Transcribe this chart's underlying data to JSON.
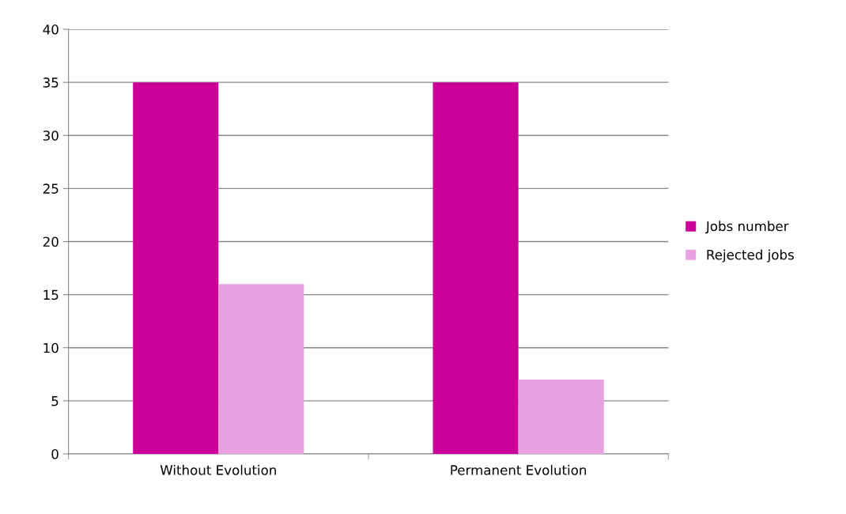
{
  "chart_data": {
    "type": "bar",
    "categories": [
      "Without Evolution",
      "Permanent Evolution"
    ],
    "series": [
      {
        "name": "Jobs number",
        "color": "#cc0099",
        "values": [
          35,
          35
        ]
      },
      {
        "name": "Rejected jobs",
        "color": "#e8a0e0",
        "values": [
          16,
          7
        ]
      }
    ],
    "ylim": [
      0,
      40
    ],
    "yticks": [
      0,
      5,
      10,
      15,
      20,
      25,
      30,
      35,
      40
    ],
    "grid": "y",
    "legend": "right"
  }
}
